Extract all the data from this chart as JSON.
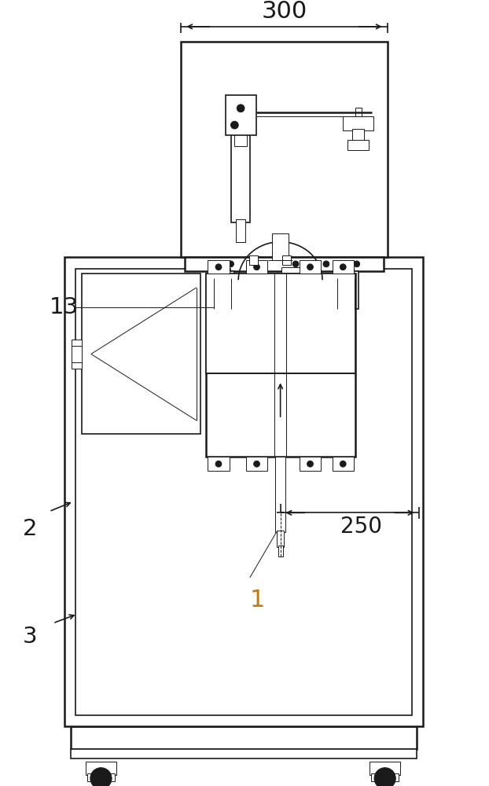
{
  "bg_color": "#ffffff",
  "lc": "#1a1a1a",
  "label_color_1": "#c8780a",
  "label_color_others": "#1a1a1a",
  "dim_300": "300",
  "dim_250": "250",
  "label_1": "1",
  "label_2": "2",
  "label_3": "3",
  "label_13": "13",
  "figw": 6.22,
  "figh": 10.0,
  "dpi": 100
}
